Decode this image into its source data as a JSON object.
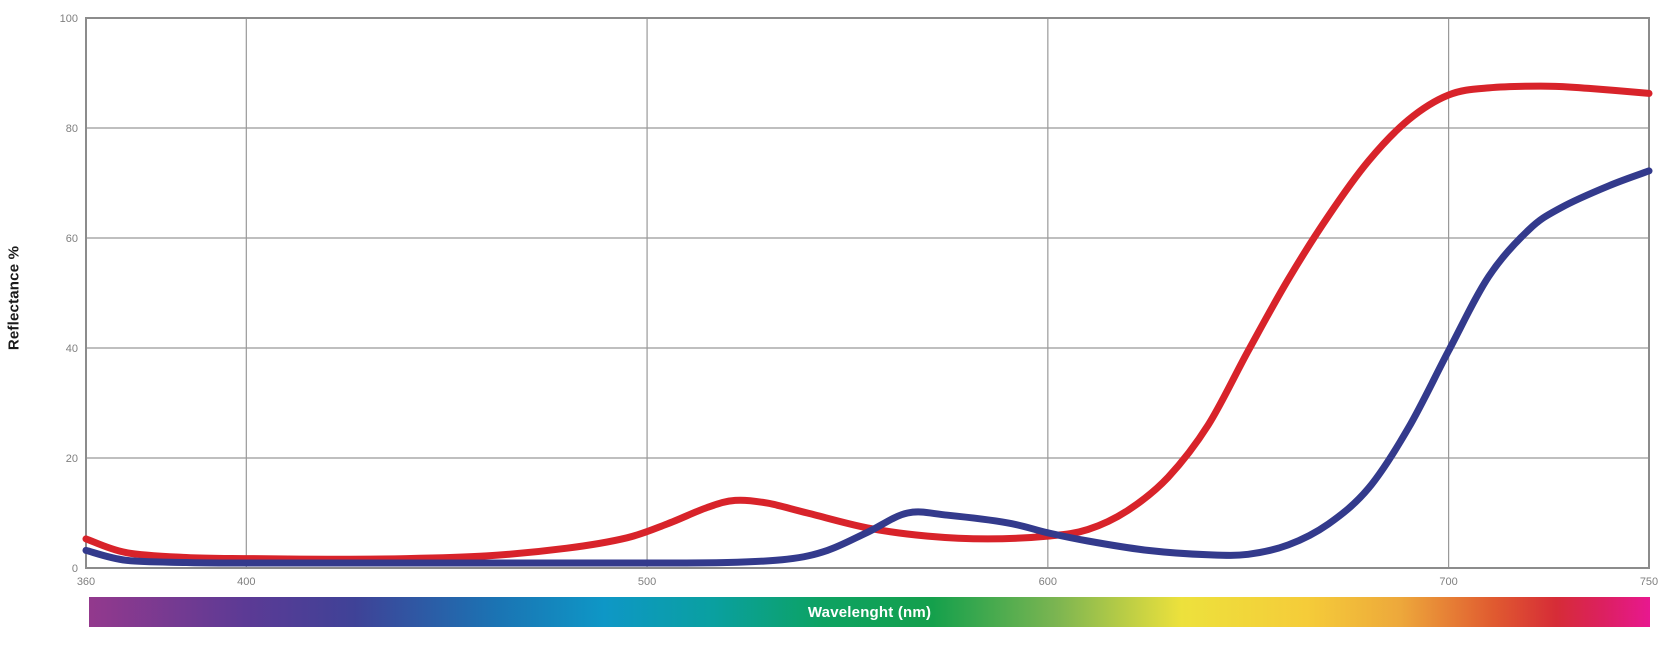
{
  "page": {
    "background": "#ffffff"
  },
  "chart_data": {
    "type": "line",
    "title": "",
    "xlabel": "Wavelenght (nm)",
    "ylabel": "Reflectance %",
    "xlim": [
      360,
      750
    ],
    "ylim": [
      0,
      100
    ],
    "x_ticks": [
      360,
      400,
      500,
      600,
      700,
      750
    ],
    "y_ticks": [
      0,
      20,
      40,
      60,
      80,
      100
    ],
    "grid": true,
    "x_gridlines_at": [
      400,
      500,
      600,
      700
    ],
    "legend_position": "none",
    "grid_color": "#999999",
    "border_color": "#8c8c8c",
    "tick_label_color": "#7f7f7f",
    "series": [
      {
        "name": "red-curve",
        "color": "#D8232A",
        "stroke_width": 7,
        "points": [
          [
            360,
            5.3
          ],
          [
            370,
            2.8
          ],
          [
            385,
            1.9
          ],
          [
            400,
            1.7
          ],
          [
            420,
            1.6
          ],
          [
            440,
            1.7
          ],
          [
            460,
            2.2
          ],
          [
            480,
            3.6
          ],
          [
            495,
            5.5
          ],
          [
            505,
            8.0
          ],
          [
            515,
            11.0
          ],
          [
            522,
            12.3
          ],
          [
            530,
            11.8
          ],
          [
            540,
            10.0
          ],
          [
            555,
            7.3
          ],
          [
            570,
            5.8
          ],
          [
            585,
            5.3
          ],
          [
            600,
            5.8
          ],
          [
            610,
            7.0
          ],
          [
            620,
            10.5
          ],
          [
            630,
            16.5
          ],
          [
            640,
            26.0
          ],
          [
            650,
            39.5
          ],
          [
            660,
            52.5
          ],
          [
            670,
            64.0
          ],
          [
            680,
            74.0
          ],
          [
            690,
            81.5
          ],
          [
            700,
            86.0
          ],
          [
            710,
            87.3
          ],
          [
            725,
            87.6
          ],
          [
            735,
            87.2
          ],
          [
            750,
            86.3
          ]
        ]
      },
      {
        "name": "blue-curve",
        "color": "#333A8C",
        "stroke_width": 7,
        "points": [
          [
            360,
            3.2
          ],
          [
            370,
            1.4
          ],
          [
            385,
            1.0
          ],
          [
            400,
            0.9
          ],
          [
            450,
            0.9
          ],
          [
            500,
            0.9
          ],
          [
            520,
            1.0
          ],
          [
            535,
            1.6
          ],
          [
            545,
            3.2
          ],
          [
            555,
            6.5
          ],
          [
            565,
            10.0
          ],
          [
            575,
            9.6
          ],
          [
            590,
            8.2
          ],
          [
            600,
            6.4
          ],
          [
            610,
            4.9
          ],
          [
            625,
            3.2
          ],
          [
            640,
            2.4
          ],
          [
            650,
            2.5
          ],
          [
            660,
            4.2
          ],
          [
            670,
            8.0
          ],
          [
            680,
            14.5
          ],
          [
            690,
            25.5
          ],
          [
            700,
            39.5
          ],
          [
            710,
            53.0
          ],
          [
            720,
            61.5
          ],
          [
            728,
            65.5
          ],
          [
            740,
            69.5
          ],
          [
            750,
            72.2
          ]
        ]
      }
    ],
    "wavelength_bar": {
      "label": "Wavelenght (nm)",
      "label_color": "#ffffff",
      "gradient_stops": [
        {
          "pos": 0,
          "color": "#93398D"
        },
        {
          "pos": 0.1,
          "color": "#5C3A95"
        },
        {
          "pos": 0.17,
          "color": "#3F4297"
        },
        {
          "pos": 0.26,
          "color": "#1B73B3"
        },
        {
          "pos": 0.33,
          "color": "#0E97C6"
        },
        {
          "pos": 0.4,
          "color": "#0AA0A0"
        },
        {
          "pos": 0.47,
          "color": "#0DA262"
        },
        {
          "pos": 0.54,
          "color": "#14A04C"
        },
        {
          "pos": 0.62,
          "color": "#7CB551"
        },
        {
          "pos": 0.7,
          "color": "#EDE13C"
        },
        {
          "pos": 0.78,
          "color": "#F5CC39"
        },
        {
          "pos": 0.84,
          "color": "#EDA83B"
        },
        {
          "pos": 0.9,
          "color": "#E05A30"
        },
        {
          "pos": 0.94,
          "color": "#D62C37"
        },
        {
          "pos": 0.97,
          "color": "#DC2060"
        },
        {
          "pos": 1.0,
          "color": "#E8188F"
        }
      ]
    }
  }
}
